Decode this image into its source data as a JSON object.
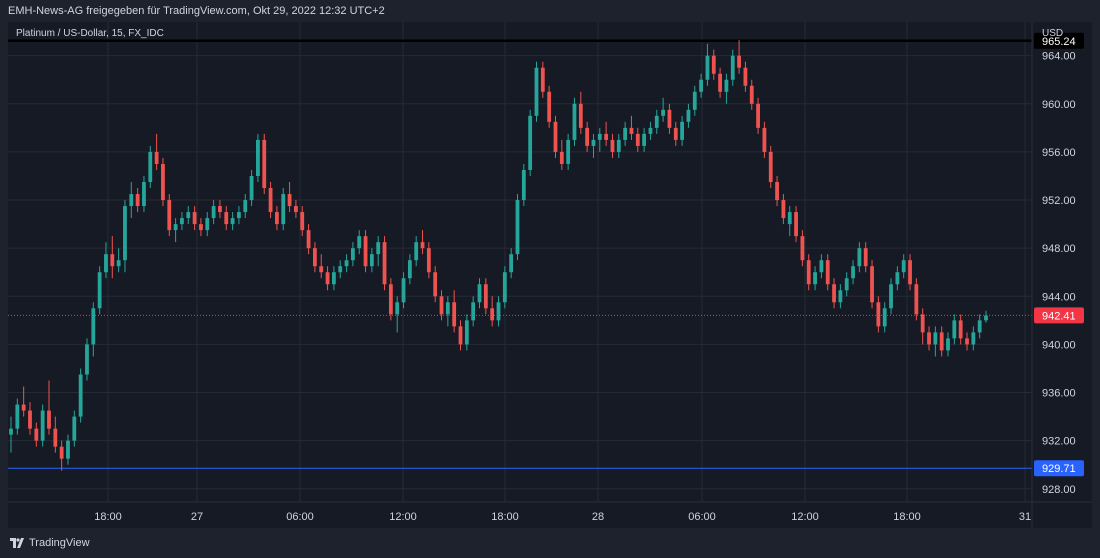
{
  "header": {
    "publisher_text": "EMH-News-AG freigegeben für TradingView.com, Okt 29, 2022 12:32 UTC+2"
  },
  "legend": {
    "symbol": "Platinum / US-Dollar, 15, FX_IDC"
  },
  "axis": {
    "currency": "USD"
  },
  "footer": {
    "brand": "TradingView"
  },
  "colors": {
    "up": "#26a69a",
    "down": "#ef5350",
    "grid": "#262a35",
    "bg": "#161a25",
    "resistance": "#000000",
    "support": "#2962ff",
    "current": "#f23645"
  },
  "chart_data": {
    "type": "candlestick",
    "y_ticks": [
      "964.00",
      "960.00",
      "956.00",
      "952.00",
      "948.00",
      "944.00",
      "940.00",
      "936.00",
      "932.00",
      "928.00"
    ],
    "y_tick_values": [
      964,
      960,
      956,
      952,
      948,
      944,
      940,
      936,
      932,
      928
    ],
    "ylim": [
      926.9,
      966.8
    ],
    "x_ticks": [
      "18:00",
      "27",
      "06:00",
      "12:00",
      "18:00",
      "28",
      "06:00",
      "12:00",
      "18:00",
      "31"
    ],
    "levels": [
      {
        "label": "965.24",
        "value": 965.24,
        "kind": "resistance"
      },
      {
        "label": "942.41",
        "value": 942.41,
        "kind": "current"
      },
      {
        "label": "929.71",
        "value": 929.71,
        "kind": "support"
      }
    ],
    "series": [
      {
        "values": [
          [
            932.5,
            934.0,
            931.0,
            933.0
          ],
          [
            933.0,
            935.5,
            932.5,
            935.0
          ],
          [
            935.0,
            936.5,
            934.0,
            934.5
          ],
          [
            934.5,
            935.2,
            932.5,
            933.0
          ],
          [
            933.0,
            933.5,
            931.5,
            932.0
          ],
          [
            932.0,
            935.0,
            931.5,
            934.5
          ],
          [
            934.5,
            937.0,
            932.5,
            933.0
          ],
          [
            933.0,
            934.0,
            931.0,
            931.5
          ],
          [
            931.5,
            932.0,
            929.5,
            930.5
          ],
          [
            930.5,
            932.5,
            930.0,
            932.0
          ],
          [
            932.0,
            934.5,
            931.5,
            934.0
          ],
          [
            934.0,
            938.0,
            933.5,
            937.5
          ],
          [
            937.5,
            940.5,
            937.0,
            940.0
          ],
          [
            940.0,
            943.5,
            939.0,
            943.0
          ],
          [
            943.0,
            946.5,
            942.5,
            946.0
          ],
          [
            946.0,
            948.5,
            945.5,
            947.5
          ],
          [
            947.5,
            949.0,
            945.5,
            946.5
          ],
          [
            946.5,
            948.0,
            946.0,
            947.0
          ],
          [
            947.0,
            952.0,
            946.0,
            951.5
          ],
          [
            951.5,
            953.5,
            950.5,
            952.5
          ],
          [
            952.5,
            953.0,
            951.0,
            951.5
          ],
          [
            951.5,
            954.0,
            951.0,
            953.5
          ],
          [
            953.5,
            956.5,
            953.0,
            956.0
          ],
          [
            956.0,
            957.5,
            954.5,
            955.0
          ],
          [
            955.0,
            955.5,
            951.5,
            952.0
          ],
          [
            952.0,
            952.5,
            949.0,
            949.5
          ],
          [
            949.5,
            950.5,
            948.5,
            950.0
          ],
          [
            950.0,
            951.0,
            949.5,
            950.5
          ],
          [
            950.5,
            951.5,
            950.0,
            951.0
          ],
          [
            951.0,
            951.5,
            949.5,
            950.0
          ],
          [
            950.0,
            950.5,
            949.0,
            949.5
          ],
          [
            949.5,
            951.0,
            949.0,
            950.5
          ],
          [
            950.5,
            952.0,
            950.0,
            951.5
          ],
          [
            951.5,
            952.0,
            950.5,
            951.0
          ],
          [
            951.0,
            951.5,
            949.5,
            950.0
          ],
          [
            950.0,
            951.0,
            949.5,
            950.5
          ],
          [
            950.5,
            951.5,
            950.0,
            951.0
          ],
          [
            951.0,
            952.5,
            950.5,
            952.0
          ],
          [
            952.0,
            954.5,
            951.5,
            954.0
          ],
          [
            954.0,
            957.5,
            953.5,
            957.0
          ],
          [
            957.0,
            957.5,
            952.5,
            953.0
          ],
          [
            953.0,
            953.5,
            950.5,
            951.0
          ],
          [
            951.0,
            951.5,
            949.5,
            950.0
          ],
          [
            950.0,
            953.0,
            949.5,
            952.5
          ],
          [
            952.5,
            953.5,
            951.0,
            951.5
          ],
          [
            951.5,
            952.0,
            950.5,
            951.0
          ],
          [
            951.0,
            951.5,
            949.0,
            949.5
          ],
          [
            949.5,
            950.0,
            947.5,
            948.0
          ],
          [
            948.0,
            948.5,
            946.0,
            946.5
          ],
          [
            946.5,
            947.5,
            945.5,
            946.0
          ],
          [
            946.0,
            946.5,
            944.5,
            945.0
          ],
          [
            945.0,
            946.5,
            944.5,
            946.0
          ],
          [
            946.0,
            947.0,
            945.5,
            946.5
          ],
          [
            946.5,
            947.5,
            946.0,
            947.0
          ],
          [
            947.0,
            948.5,
            946.5,
            948.0
          ],
          [
            948.0,
            949.5,
            947.5,
            949.0
          ],
          [
            949.0,
            949.5,
            946.0,
            946.5
          ],
          [
            946.5,
            948.0,
            946.0,
            947.5
          ],
          [
            947.5,
            949.0,
            946.5,
            948.5
          ],
          [
            948.5,
            949.0,
            944.5,
            945.0
          ],
          [
            945.0,
            945.5,
            942.0,
            942.5
          ],
          [
            942.5,
            944.0,
            941.0,
            943.5
          ],
          [
            943.5,
            946.0,
            943.0,
            945.5
          ],
          [
            945.5,
            947.5,
            945.0,
            947.0
          ],
          [
            947.0,
            949.0,
            946.5,
            948.5
          ],
          [
            948.5,
            949.5,
            947.5,
            948.0
          ],
          [
            948.0,
            948.5,
            945.5,
            946.0
          ],
          [
            946.0,
            946.5,
            943.5,
            944.0
          ],
          [
            944.0,
            944.5,
            942.0,
            942.5
          ],
          [
            942.5,
            944.0,
            941.5,
            943.5
          ],
          [
            943.5,
            944.5,
            941.0,
            941.5
          ],
          [
            941.5,
            942.0,
            939.5,
            940.0
          ],
          [
            940.0,
            942.5,
            939.5,
            942.0
          ],
          [
            942.0,
            944.0,
            941.5,
            943.5
          ],
          [
            943.5,
            945.5,
            943.0,
            945.0
          ],
          [
            945.0,
            945.5,
            942.5,
            943.0
          ],
          [
            943.0,
            944.0,
            941.5,
            942.0
          ],
          [
            942.0,
            944.0,
            941.5,
            943.5
          ],
          [
            943.5,
            946.5,
            943.0,
            946.0
          ],
          [
            946.0,
            948.0,
            945.5,
            947.5
          ],
          [
            947.5,
            952.5,
            947.0,
            952.0
          ],
          [
            952.0,
            955.0,
            951.5,
            954.5
          ],
          [
            954.5,
            959.5,
            954.0,
            959.0
          ],
          [
            959.0,
            963.5,
            958.5,
            963.0
          ],
          [
            963.0,
            963.5,
            960.5,
            961.0
          ],
          [
            961.0,
            961.5,
            958.0,
            958.5
          ],
          [
            958.5,
            959.0,
            955.5,
            956.0
          ],
          [
            956.0,
            957.0,
            954.5,
            955.0
          ],
          [
            955.0,
            957.5,
            954.5,
            957.0
          ],
          [
            957.0,
            960.5,
            956.5,
            960.0
          ],
          [
            960.0,
            961.0,
            957.5,
            958.0
          ],
          [
            958.0,
            958.5,
            956.0,
            956.5
          ],
          [
            956.5,
            957.5,
            955.5,
            957.0
          ],
          [
            957.0,
            958.0,
            956.0,
            957.5
          ],
          [
            957.5,
            958.5,
            956.5,
            957.0
          ],
          [
            957.0,
            957.5,
            955.5,
            956.0
          ],
          [
            956.0,
            957.5,
            955.5,
            957.0
          ],
          [
            957.0,
            958.5,
            956.5,
            958.0
          ],
          [
            958.0,
            959.0,
            957.0,
            957.5
          ],
          [
            957.5,
            958.0,
            956.0,
            956.5
          ],
          [
            956.5,
            958.0,
            956.0,
            957.5
          ],
          [
            957.5,
            958.5,
            957.0,
            958.0
          ],
          [
            958.0,
            959.5,
            957.5,
            959.0
          ],
          [
            959.0,
            960.5,
            958.5,
            959.5
          ],
          [
            959.5,
            960.0,
            957.5,
            958.0
          ],
          [
            958.0,
            958.5,
            956.5,
            957.0
          ],
          [
            957.0,
            959.0,
            956.5,
            958.5
          ],
          [
            958.5,
            960.0,
            958.0,
            959.5
          ],
          [
            959.5,
            961.5,
            959.0,
            961.0
          ],
          [
            961.0,
            962.5,
            960.5,
            962.0
          ],
          [
            962.0,
            965.0,
            961.5,
            964.0
          ],
          [
            964.0,
            964.5,
            962.0,
            962.5
          ],
          [
            962.5,
            963.0,
            960.5,
            961.0
          ],
          [
            961.0,
            962.5,
            960.0,
            962.0
          ],
          [
            962.0,
            964.5,
            961.5,
            964.0
          ],
          [
            964.0,
            965.3,
            962.5,
            963.0
          ],
          [
            963.0,
            963.5,
            961.0,
            961.5
          ],
          [
            961.5,
            962.0,
            959.5,
            960.0
          ],
          [
            960.0,
            960.5,
            957.5,
            958.0
          ],
          [
            958.0,
            958.5,
            955.5,
            956.0
          ],
          [
            956.0,
            956.5,
            953.0,
            953.5
          ],
          [
            953.5,
            954.0,
            951.5,
            952.0
          ],
          [
            952.0,
            952.5,
            950.0,
            950.5
          ],
          [
            950.0,
            951.5,
            949.0,
            951.0
          ],
          [
            951.0,
            951.5,
            948.5,
            949.0
          ],
          [
            949.0,
            949.5,
            946.5,
            947.0
          ],
          [
            947.0,
            947.5,
            944.5,
            945.0
          ],
          [
            945.0,
            946.5,
            944.5,
            946.0
          ],
          [
            946.0,
            947.5,
            945.5,
            947.0
          ],
          [
            947.0,
            947.5,
            944.5,
            945.0
          ],
          [
            945.0,
            945.5,
            943.0,
            943.5
          ],
          [
            943.5,
            945.0,
            943.0,
            944.5
          ],
          [
            944.5,
            946.0,
            944.0,
            945.5
          ],
          [
            945.5,
            947.0,
            945.0,
            946.5
          ],
          [
            946.5,
            948.5,
            946.0,
            948.0
          ],
          [
            948.0,
            948.5,
            946.0,
            946.5
          ],
          [
            946.5,
            947.0,
            943.0,
            943.5
          ],
          [
            943.5,
            944.0,
            941.0,
            941.5
          ],
          [
            941.5,
            943.5,
            941.0,
            943.0
          ],
          [
            943.0,
            945.5,
            942.5,
            945.0
          ],
          [
            945.0,
            946.5,
            944.5,
            946.0
          ],
          [
            946.0,
            947.5,
            945.5,
            947.0
          ],
          [
            947.0,
            947.5,
            944.5,
            945.0
          ],
          [
            945.0,
            945.5,
            942.0,
            942.5
          ],
          [
            942.5,
            943.0,
            940.0,
            941.0
          ],
          [
            941.0,
            941.5,
            939.5,
            940.0
          ],
          [
            940.0,
            941.5,
            939.0,
            941.0
          ],
          [
            941.0,
            941.5,
            939.0,
            939.5
          ],
          [
            939.5,
            941.0,
            939.0,
            940.5
          ],
          [
            940.5,
            942.5,
            940.0,
            942.0
          ],
          [
            942.0,
            942.5,
            940.0,
            940.5
          ],
          [
            940.5,
            941.0,
            939.5,
            940.0
          ],
          [
            940.0,
            941.5,
            939.5,
            941.0
          ],
          [
            941.0,
            942.5,
            940.5,
            942.0
          ],
          [
            942.0,
            942.8,
            941.8,
            942.4
          ]
        ]
      }
    ]
  }
}
